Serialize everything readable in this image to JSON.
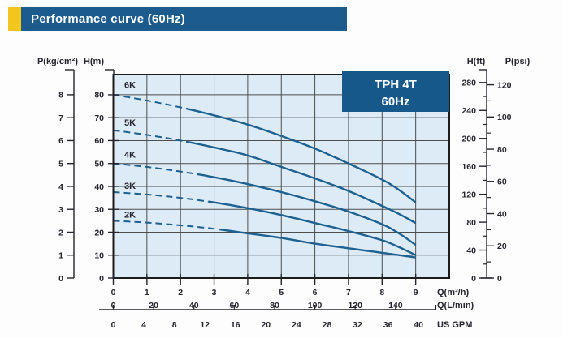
{
  "title_bar": {
    "title": "Performance curve (60Hz)"
  },
  "legend": {
    "line1": "TPH 4T",
    "line2": "60Hz"
  },
  "colors": {
    "accent_yellow": "#f2c61d",
    "header_blue": "#1b5b8d",
    "legend_blue": "#16588a",
    "plot_bg": "#dcebf6",
    "grid": "#4d4d4d",
    "border": "#1c1c1c",
    "curve": "#1d6191",
    "text": "#26242c",
    "white": "#ffffff"
  },
  "chart_data": {
    "type": "line",
    "title": "TPH 4T 60Hz pump performance curves",
    "grid": "on",
    "legend_box": {
      "line1": "TPH 4T",
      "line2": "60Hz",
      "position": "top-right"
    },
    "x_axes": [
      {
        "label": "Q(m³/h)",
        "ticks": [
          0,
          1,
          2,
          3,
          4,
          5,
          6,
          7,
          8,
          9
        ],
        "range": [
          0,
          10
        ]
      },
      {
        "label": "Q(L/min)",
        "ticks": [
          0,
          20,
          40,
          60,
          80,
          100,
          120,
          140
        ],
        "lmin_per_m3h": 16.667
      },
      {
        "label": "US GPM",
        "ticks": [
          0,
          4,
          8,
          12,
          16,
          20,
          24,
          28,
          32,
          36,
          40
        ],
        "lmin_per_gpm": 3.7854
      }
    ],
    "y_axes_left": [
      {
        "label": "P(kg/cm²)",
        "ticks": [
          0,
          1,
          2,
          3,
          4,
          5,
          6,
          7,
          8
        ],
        "m_per_unit": 10
      },
      {
        "label": "H(m)",
        "ticks": [
          0,
          10,
          20,
          30,
          40,
          50,
          60,
          70,
          80
        ],
        "range": [
          0,
          88.8
        ]
      }
    ],
    "y_axes_right": [
      {
        "label": "H(ft)",
        "ticks": [
          0,
          40,
          80,
          120,
          160,
          200,
          240,
          280
        ],
        "minor_step": 20,
        "m_per_unit": 0.3048
      },
      {
        "label": "P(psi)",
        "ticks": [
          0,
          20,
          40,
          60,
          80,
          100,
          120
        ],
        "minor_step": 10,
        "m_per_unit": 0.7031
      }
    ],
    "series": [
      {
        "name": "6K",
        "dash_until": 2.0,
        "label_h": 83,
        "q": [
          0,
          1,
          2,
          3,
          4,
          5,
          6,
          7,
          8,
          8.5,
          9
        ],
        "h_m": [
          80,
          77.5,
          74.5,
          71,
          67,
          62,
          56.5,
          50,
          43,
          38.5,
          33
        ]
      },
      {
        "name": "5K",
        "dash_until": 2.0,
        "label_h": 66.5,
        "q": [
          0,
          1,
          2,
          3,
          4,
          5,
          6,
          7,
          8,
          8.5,
          9
        ],
        "h_m": [
          64.5,
          62.5,
          60,
          57,
          53.5,
          48.5,
          43.5,
          38,
          31.5,
          28,
          24
        ]
      },
      {
        "name": "4K",
        "dash_until": 2.4,
        "label_h": 52.5,
        "q": [
          0,
          1,
          2,
          3,
          4,
          5,
          6,
          7,
          8,
          8.5,
          9
        ],
        "h_m": [
          50,
          48.5,
          46.5,
          44,
          41,
          37.5,
          33.5,
          29,
          23.5,
          19.5,
          14.5
        ]
      },
      {
        "name": "3K",
        "dash_until": 2.8,
        "label_h": 39,
        "q": [
          0,
          1,
          2,
          3,
          4,
          5,
          6,
          7,
          8,
          8.5,
          9
        ],
        "h_m": [
          37.5,
          36.5,
          35,
          33,
          30.5,
          27.5,
          24,
          20.5,
          16.5,
          13.5,
          10
        ]
      },
      {
        "name": "2K",
        "dash_until": 3.0,
        "label_h": 26.3,
        "q": [
          0,
          1,
          2,
          3,
          4,
          5,
          6,
          7,
          8,
          8.5,
          9
        ],
        "h_m": [
          25,
          24.2,
          23,
          21.5,
          19.5,
          17.5,
          15,
          13,
          11,
          10,
          9
        ]
      }
    ]
  }
}
